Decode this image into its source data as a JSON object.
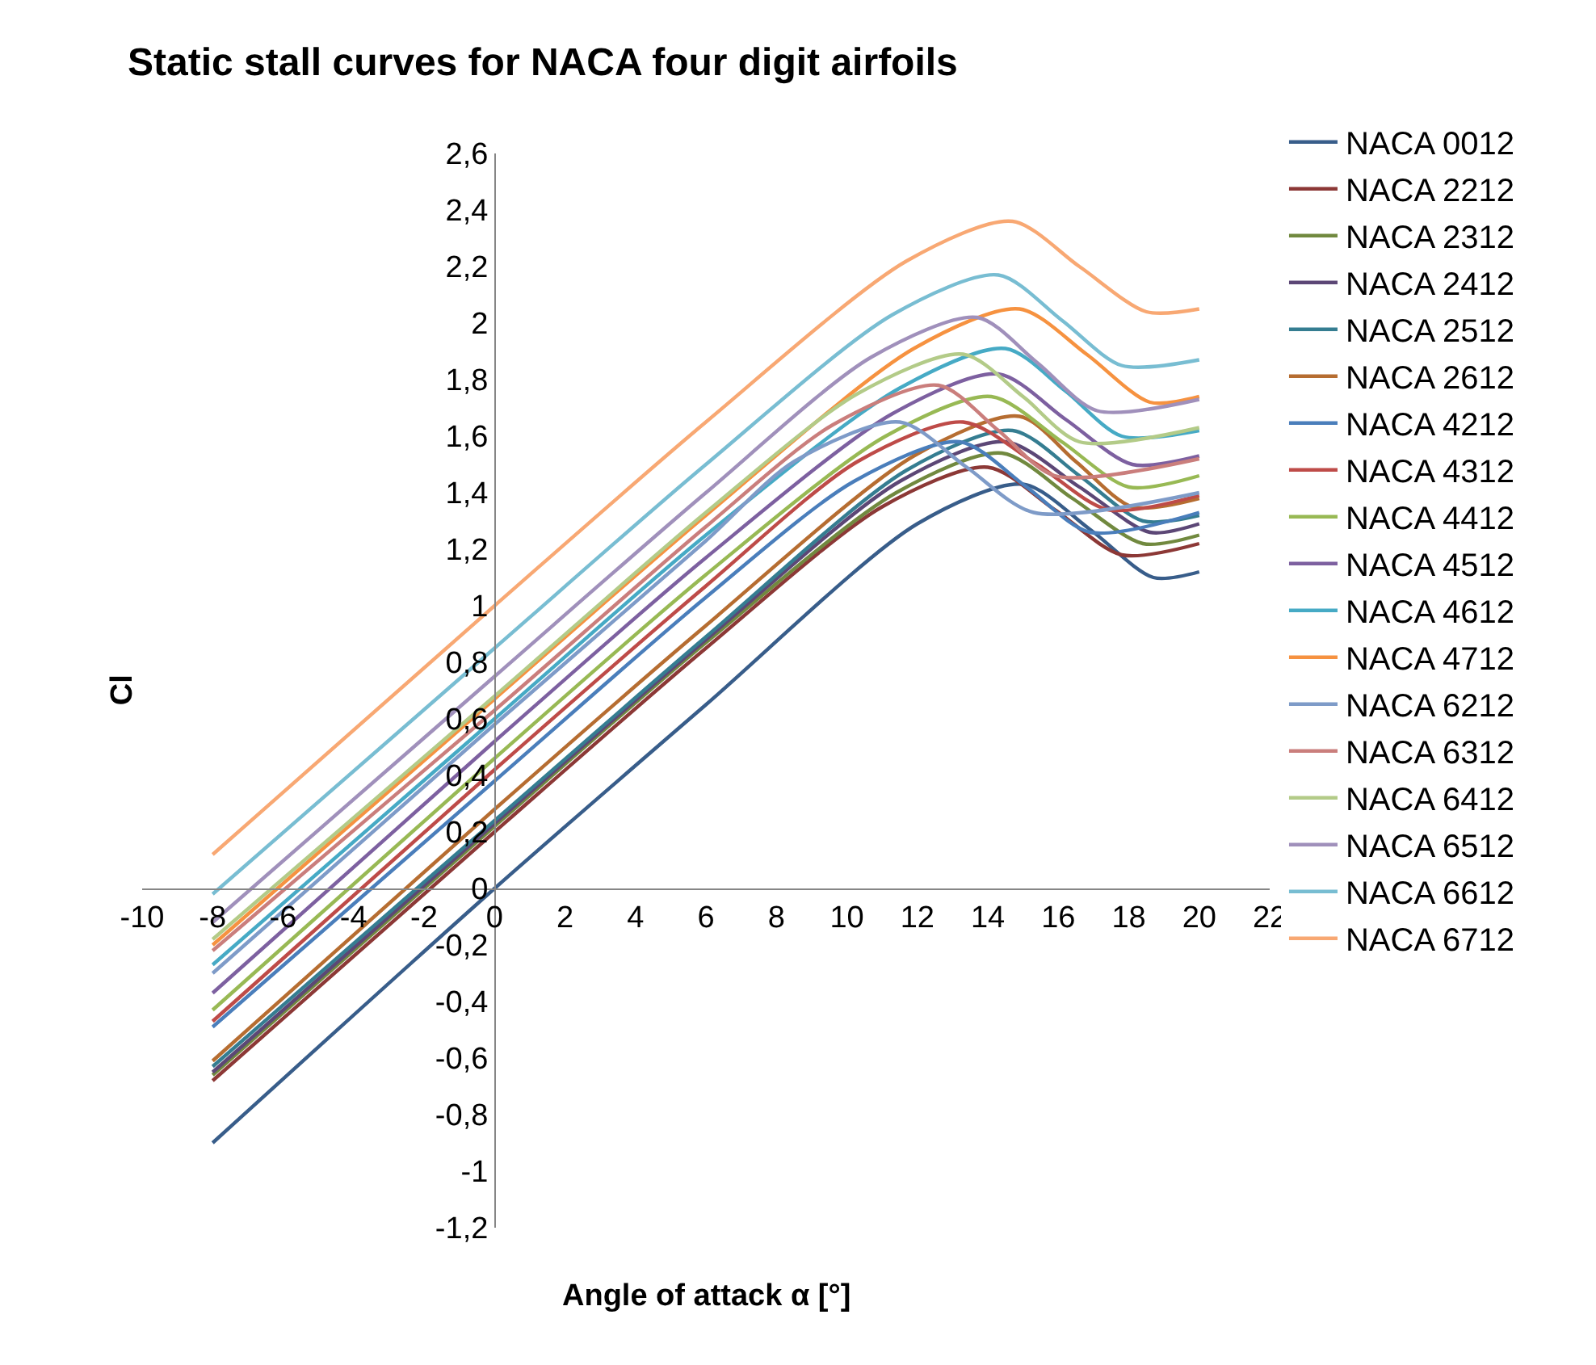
{
  "chart_data": {
    "type": "line",
    "title": "Static stall curves for NACA four digit airfoils",
    "xlabel": "Angle of attack α [°]",
    "ylabel": "Cl",
    "xlim": [
      -10,
      22
    ],
    "xticks": [
      -10,
      -8,
      -6,
      -4,
      -2,
      0,
      2,
      4,
      6,
      8,
      10,
      12,
      14,
      16,
      18,
      20,
      22
    ],
    "ylim": [
      -1.2,
      2.6
    ],
    "yticks": [
      {
        "value": -1.2,
        "label": "-1,2"
      },
      -1,
      {
        "value": -0.8,
        "label": "-0,8"
      },
      {
        "value": -0.6,
        "label": "-0,6"
      },
      {
        "value": -0.4,
        "label": "-0,4"
      },
      {
        "value": -0.2,
        "label": "-0,2"
      },
      0,
      {
        "value": 0.2,
        "label": "0,2"
      },
      {
        "value": 0.4,
        "label": "0,4"
      },
      {
        "value": 0.6,
        "label": "0,6"
      },
      {
        "value": 0.8,
        "label": "0,8"
      },
      1,
      {
        "value": 1.2,
        "label": "1,2"
      },
      {
        "value": 1.4,
        "label": "1,4"
      },
      {
        "value": 1.6,
        "label": "1,6"
      },
      {
        "value": 1.8,
        "label": "1,8"
      },
      2,
      {
        "value": 2.2,
        "label": "2,2"
      },
      {
        "value": 2.4,
        "label": "2,4"
      },
      {
        "value": 2.6,
        "label": "2,6"
      }
    ],
    "grid": false,
    "legend": "right",
    "marker": "none",
    "line_style": "solid",
    "series": [
      {
        "name": "NACA 0012",
        "color": "#385d8a",
        "x": [
          -8,
          0,
          6,
          12,
          15,
          16.9,
          18.7,
          20
        ],
        "values": [
          -0.9,
          0.0,
          0.65,
          1.29,
          1.43,
          1.27,
          1.1,
          1.12
        ]
      },
      {
        "name": "NACA 2212",
        "color": "#8c3836",
        "x": [
          -8,
          0,
          6,
          11,
          14,
          15.9,
          17.8,
          20
        ],
        "values": [
          -0.68,
          0.2,
          0.85,
          1.35,
          1.49,
          1.34,
          1.18,
          1.22
        ]
      },
      {
        "name": "NACA 2312",
        "color": "#71893f",
        "x": [
          -8,
          0,
          6,
          11.4,
          14.4,
          16.4,
          18.4,
          20
        ],
        "values": [
          -0.66,
          0.22,
          0.87,
          1.4,
          1.54,
          1.38,
          1.22,
          1.25
        ]
      },
      {
        "name": "NACA 2412",
        "color": "#5c4776",
        "x": [
          -8,
          0,
          6,
          11.5,
          14.5,
          16.6,
          18.6,
          20
        ],
        "values": [
          -0.65,
          0.23,
          0.88,
          1.44,
          1.58,
          1.42,
          1.26,
          1.29
        ]
      },
      {
        "name": "NACA 2512",
        "color": "#357d91",
        "x": [
          -8,
          0,
          6,
          11.7,
          14.7,
          16.6,
          18.4,
          20
        ],
        "values": [
          -0.63,
          0.24,
          0.89,
          1.48,
          1.62,
          1.46,
          1.3,
          1.32
        ]
      },
      {
        "name": "NACA 2612",
        "color": "#b66d31",
        "x": [
          -8,
          0,
          6,
          11.9,
          14.9,
          16.5,
          18.1,
          20
        ],
        "values": [
          -0.61,
          0.28,
          0.93,
          1.53,
          1.67,
          1.51,
          1.35,
          1.38
        ]
      },
      {
        "name": "NACA 4212",
        "color": "#4a7ebb",
        "x": [
          -8,
          0,
          6,
          10.2,
          13.2,
          15.1,
          16.9,
          20
        ],
        "values": [
          -0.49,
          0.38,
          1.03,
          1.44,
          1.58,
          1.42,
          1.26,
          1.33
        ]
      },
      {
        "name": "NACA 4312",
        "color": "#be4b48",
        "x": [
          -8,
          0,
          6,
          10.3,
          13.3,
          15.4,
          17.4,
          20
        ],
        "values": [
          -0.47,
          0.42,
          1.07,
          1.51,
          1.65,
          1.5,
          1.34,
          1.39
        ]
      },
      {
        "name": "NACA 4412",
        "color": "#98b954",
        "x": [
          -8,
          0,
          6,
          11.1,
          14.1,
          16.1,
          18,
          20
        ],
        "values": [
          -0.43,
          0.46,
          1.11,
          1.6,
          1.74,
          1.58,
          1.42,
          1.46
        ]
      },
      {
        "name": "NACA 4512",
        "color": "#7d60a0",
        "x": [
          -8,
          0,
          6,
          11.3,
          14.3,
          16.2,
          18.1,
          20
        ],
        "values": [
          -0.37,
          0.52,
          1.17,
          1.68,
          1.82,
          1.66,
          1.5,
          1.53
        ]
      },
      {
        "name": "NACA 4612",
        "color": "#46aac5",
        "x": [
          -8,
          0,
          6,
          11.5,
          14.5,
          16.2,
          17.8,
          20
        ],
        "values": [
          -0.27,
          0.6,
          1.25,
          1.77,
          1.91,
          1.76,
          1.6,
          1.62
        ]
      },
      {
        "name": "NACA 4712",
        "color": "#f69240",
        "x": [
          -8,
          0,
          6,
          11.9,
          14.9,
          16.8,
          18.6,
          20
        ],
        "values": [
          -0.2,
          0.67,
          1.32,
          1.91,
          2.05,
          1.89,
          1.72,
          1.74
        ]
      },
      {
        "name": "NACA 6212",
        "color": "#7e9bc8",
        "x": [
          -8,
          0,
          6,
          8.5,
          11.5,
          13.4,
          15.3,
          20
        ],
        "values": [
          -0.3,
          0.58,
          1.23,
          1.51,
          1.65,
          1.49,
          1.33,
          1.4
        ]
      },
      {
        "name": "NACA 6312",
        "color": "#ca7e7c",
        "x": [
          -8,
          0,
          6,
          9.6,
          12.6,
          14.3,
          15.9,
          20
        ],
        "values": [
          -0.22,
          0.63,
          1.28,
          1.64,
          1.78,
          1.62,
          1.46,
          1.52
        ]
      },
      {
        "name": "NACA 6412",
        "color": "#b3cb88",
        "x": [
          -8,
          0,
          6,
          10.3,
          13.3,
          15,
          16.6,
          20
        ],
        "values": [
          -0.18,
          0.68,
          1.33,
          1.75,
          1.89,
          1.74,
          1.58,
          1.63
        ]
      },
      {
        "name": "NACA 6512",
        "color": "#a090bb",
        "x": [
          -8,
          0,
          6,
          10.7,
          13.7,
          15.4,
          17.1,
          20
        ],
        "values": [
          -0.12,
          0.75,
          1.4,
          1.88,
          2.02,
          1.86,
          1.69,
          1.73
        ]
      },
      {
        "name": "NACA 6612",
        "color": "#78bdd2",
        "x": [
          -8,
          0,
          6,
          11.3,
          14.3,
          16.1,
          17.8,
          20
        ],
        "values": [
          -0.02,
          0.85,
          1.5,
          2.03,
          2.17,
          2.01,
          1.85,
          1.87
        ]
      },
      {
        "name": "NACA 6712",
        "color": "#f8a873",
        "x": [
          -8,
          0,
          6,
          11.7,
          14.7,
          16.6,
          18.5,
          20
        ],
        "values": [
          0.12,
          1.0,
          1.65,
          2.22,
          2.36,
          2.2,
          2.04,
          2.05
        ]
      }
    ]
  }
}
